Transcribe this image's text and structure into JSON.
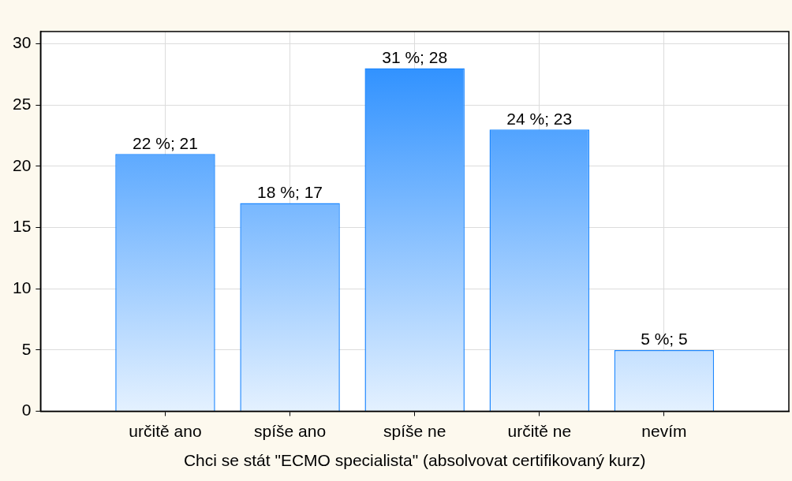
{
  "chart_data": {
    "type": "bar",
    "xlabel": "Chci se stát \"ECMO specialista\" (absolvovat certifikovaný kurz)",
    "categories": [
      "určitě ano",
      "spíše ano",
      "spíše ne",
      "určitě ne",
      "nevím"
    ],
    "values": [
      21,
      17,
      28,
      23,
      5
    ],
    "value_labels": [
      "22 %; 21",
      "18 %; 17",
      "31 %; 28",
      "24 %; 23",
      "5 %; 5"
    ],
    "color": "#1e88ff",
    "ylim": [
      0,
      31
    ],
    "yticks": [
      0,
      5,
      10,
      15,
      20,
      25,
      30
    ],
    "grid": true,
    "legend": false
  }
}
